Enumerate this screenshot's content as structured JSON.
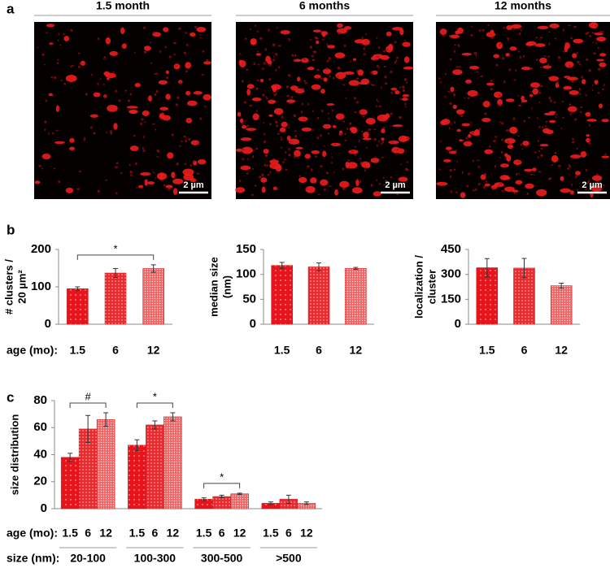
{
  "panel_labels": [
    "a",
    "b",
    "c"
  ],
  "images": [
    {
      "title": "1.5 month",
      "scale_bar": "2 µm"
    },
    {
      "title": "6 months",
      "scale_bar": "2 µm"
    },
    {
      "title": "12 months",
      "scale_bar": "2 µm"
    }
  ],
  "chart_data": [
    {
      "type": "bar",
      "y_label": [
        "# clusters /",
        "20 µm²"
      ],
      "x_label": "age (mo):",
      "categories": [
        "1.5",
        "6",
        "12"
      ],
      "values": [
        95,
        137,
        149
      ],
      "errors": [
        5,
        12,
        10
      ],
      "colors": [
        "#e8141c",
        "#ec2a2e",
        "#f06464"
      ],
      "ylim": [
        0,
        200
      ],
      "yticks": [
        0,
        100,
        200
      ],
      "annotations": [
        "*"
      ]
    },
    {
      "type": "bar",
      "y_label": [
        "median size",
        "(nm)"
      ],
      "categories": [
        "1.5",
        "6",
        "12"
      ],
      "values": [
        118,
        115,
        112
      ],
      "errors": [
        6,
        8,
        2
      ],
      "colors": [
        "#e8141c",
        "#ec2a2e",
        "#f06464"
      ],
      "ylim": [
        0,
        150
      ],
      "yticks": [
        0,
        50,
        100,
        150
      ]
    },
    {
      "type": "bar",
      "y_label": [
        "localization /",
        "cluster"
      ],
      "categories": [
        "1.5",
        "6",
        "12"
      ],
      "values": [
        340,
        338,
        232
      ],
      "errors": [
        55,
        58,
        15
      ],
      "colors": [
        "#e8141c",
        "#ec2a2e",
        "#f06464"
      ],
      "ylim": [
        0,
        450
      ],
      "yticks": [
        0,
        150,
        300,
        450
      ]
    },
    {
      "type": "grouped_bar",
      "y_label": [
        "size distribution"
      ],
      "x_label": "age (mo):",
      "category_label": "size (nm):",
      "categories": [
        "20-100",
        "100-300",
        "300-500",
        ">500"
      ],
      "series": [
        {
          "name": "1.5",
          "color": "#e8141c",
          "values": [
            38,
            47,
            7,
            4
          ],
          "errors": [
            3,
            4,
            1,
            1
          ]
        },
        {
          "name": "6",
          "color": "#ec2a2e",
          "values": [
            59,
            62,
            9,
            7
          ],
          "errors": [
            10,
            3,
            1,
            3
          ]
        },
        {
          "name": "12",
          "color": "#f06464",
          "values": [
            66,
            68,
            11,
            4
          ],
          "errors": [
            5,
            3,
            0.5,
            1
          ]
        }
      ],
      "ylim": [
        0,
        80
      ],
      "yticks": [
        0,
        20,
        40,
        60,
        80
      ],
      "annotations": [
        "#",
        "*",
        "*"
      ]
    }
  ]
}
